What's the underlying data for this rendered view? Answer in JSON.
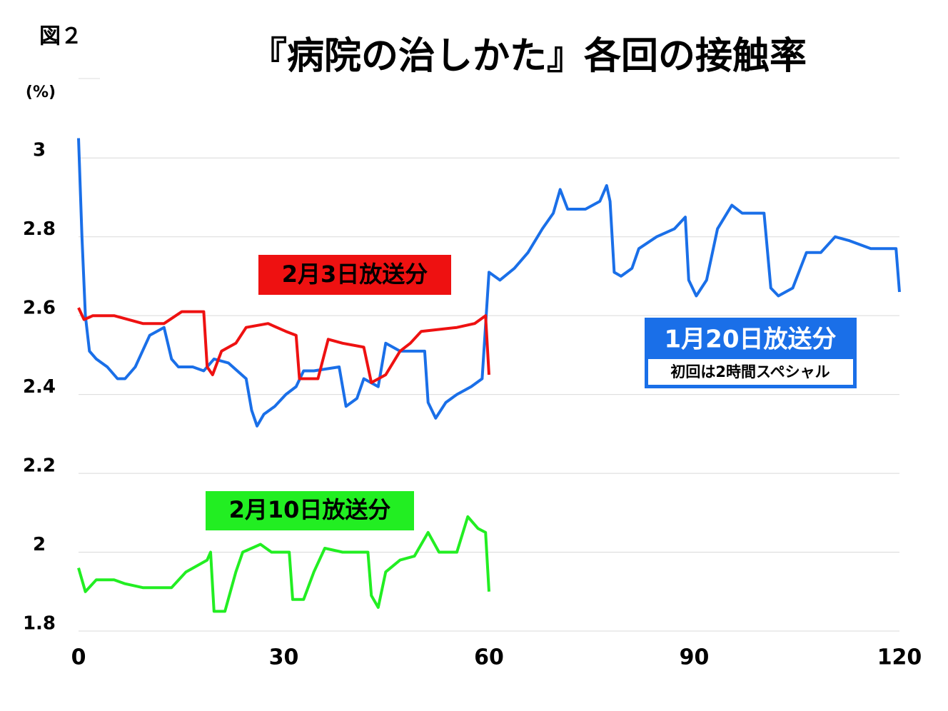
{
  "chart_data": {
    "type": "line",
    "figure_label": "図２",
    "title": "『病院の治しかた』各回の接触率",
    "y_unit": "(%)",
    "xlim": [
      0,
      120
    ],
    "xticks": [
      0,
      30,
      60,
      90,
      120
    ],
    "ylim": [
      1.8,
      3.1
    ],
    "yticks": [
      1.8,
      2,
      2.2,
      2.4,
      2.6,
      2.8,
      3
    ],
    "grid": true,
    "series": [
      {
        "name": "1月20日放送分",
        "note": "初回は2時間スペシャル",
        "color": "#1a6fe8",
        "x": [
          0,
          0.5,
          1.0,
          1.6,
          2.6,
          4.2,
          5.7,
          6.8,
          8.3,
          10.4,
          12.5,
          13.6,
          14.6,
          16.7,
          18.3,
          19.8,
          21.9,
          24.5,
          25.3,
          26.1,
          27.1,
          28.7,
          30.3,
          31.8,
          32.9,
          34.4,
          38.1,
          39.1,
          40.7,
          41.7,
          43.8,
          44.9,
          47.0,
          50.6,
          51.1,
          52.2,
          53.7,
          55.3,
          57.4,
          59.0,
          60.0,
          61.6,
          63.7,
          65.7,
          67.8,
          69.4,
          70.4,
          71.5,
          74.1,
          76.2,
          77.2,
          77.7,
          78.3,
          79.3,
          80.9,
          81.9,
          84.5,
          87.1,
          88.7,
          89.2,
          90.3,
          91.8,
          93.4,
          95.5,
          97.0,
          100.2,
          101.2,
          102.3,
          104.4,
          106.4,
          108.5,
          110.6,
          112.7,
          115.8,
          119.5,
          120
        ],
        "values": [
          3.05,
          2.8,
          2.6,
          2.51,
          2.49,
          2.47,
          2.44,
          2.44,
          2.47,
          2.55,
          2.57,
          2.49,
          2.47,
          2.47,
          2.46,
          2.49,
          2.48,
          2.44,
          2.36,
          2.32,
          2.35,
          2.37,
          2.4,
          2.42,
          2.46,
          2.46,
          2.47,
          2.37,
          2.39,
          2.44,
          2.42,
          2.53,
          2.51,
          2.51,
          2.38,
          2.34,
          2.38,
          2.4,
          2.42,
          2.44,
          2.71,
          2.69,
          2.72,
          2.76,
          2.82,
          2.86,
          2.92,
          2.87,
          2.87,
          2.89,
          2.93,
          2.89,
          2.71,
          2.7,
          2.72,
          2.77,
          2.8,
          2.82,
          2.85,
          2.69,
          2.65,
          2.69,
          2.82,
          2.88,
          2.86,
          2.86,
          2.67,
          2.65,
          2.67,
          2.76,
          2.76,
          2.8,
          2.79,
          2.77,
          2.77,
          2.66
        ]
      },
      {
        "name": "2月3日放送分",
        "color": "#ee1111",
        "x": [
          0,
          0.8,
          2.1,
          5.2,
          9.4,
          12.5,
          15.1,
          18.3,
          18.8,
          19.6,
          20.9,
          23.0,
          24.5,
          27.7,
          30.3,
          31.8,
          32.3,
          35.0,
          36.5,
          38.6,
          41.7,
          42.8,
          44.9,
          47.0,
          48.5,
          50.1,
          55.3,
          57.9,
          59.5,
          60
        ],
        "values": [
          2.62,
          2.59,
          2.6,
          2.6,
          2.58,
          2.58,
          2.61,
          2.61,
          2.47,
          2.45,
          2.51,
          2.53,
          2.57,
          2.58,
          2.56,
          2.55,
          2.44,
          2.44,
          2.54,
          2.53,
          2.52,
          2.43,
          2.45,
          2.51,
          2.53,
          2.56,
          2.57,
          2.58,
          2.6,
          2.45
        ]
      },
      {
        "name": "2月10日放送分",
        "color": "#22ee22",
        "x": [
          0,
          1.0,
          2.6,
          5.2,
          6.8,
          9.4,
          13.6,
          15.7,
          18.8,
          19.3,
          19.8,
          21.4,
          23.0,
          24.0,
          26.6,
          28.2,
          30.8,
          31.3,
          32.9,
          34.4,
          36.0,
          38.6,
          42.3,
          42.8,
          43.8,
          44.9,
          47.0,
          49.1,
          51.1,
          52.7,
          55.3,
          56.9,
          58.4,
          59.5,
          60
        ],
        "values": [
          1.96,
          1.9,
          1.93,
          1.93,
          1.92,
          1.91,
          1.91,
          1.95,
          1.98,
          2.0,
          1.85,
          1.85,
          1.95,
          2.0,
          2.02,
          2.0,
          2.0,
          1.88,
          1.88,
          1.95,
          2.01,
          2.0,
          2.0,
          1.89,
          1.86,
          1.95,
          1.98,
          1.99,
          2.05,
          2.0,
          2.0,
          2.09,
          2.06,
          2.05,
          1.9
        ]
      }
    ]
  }
}
